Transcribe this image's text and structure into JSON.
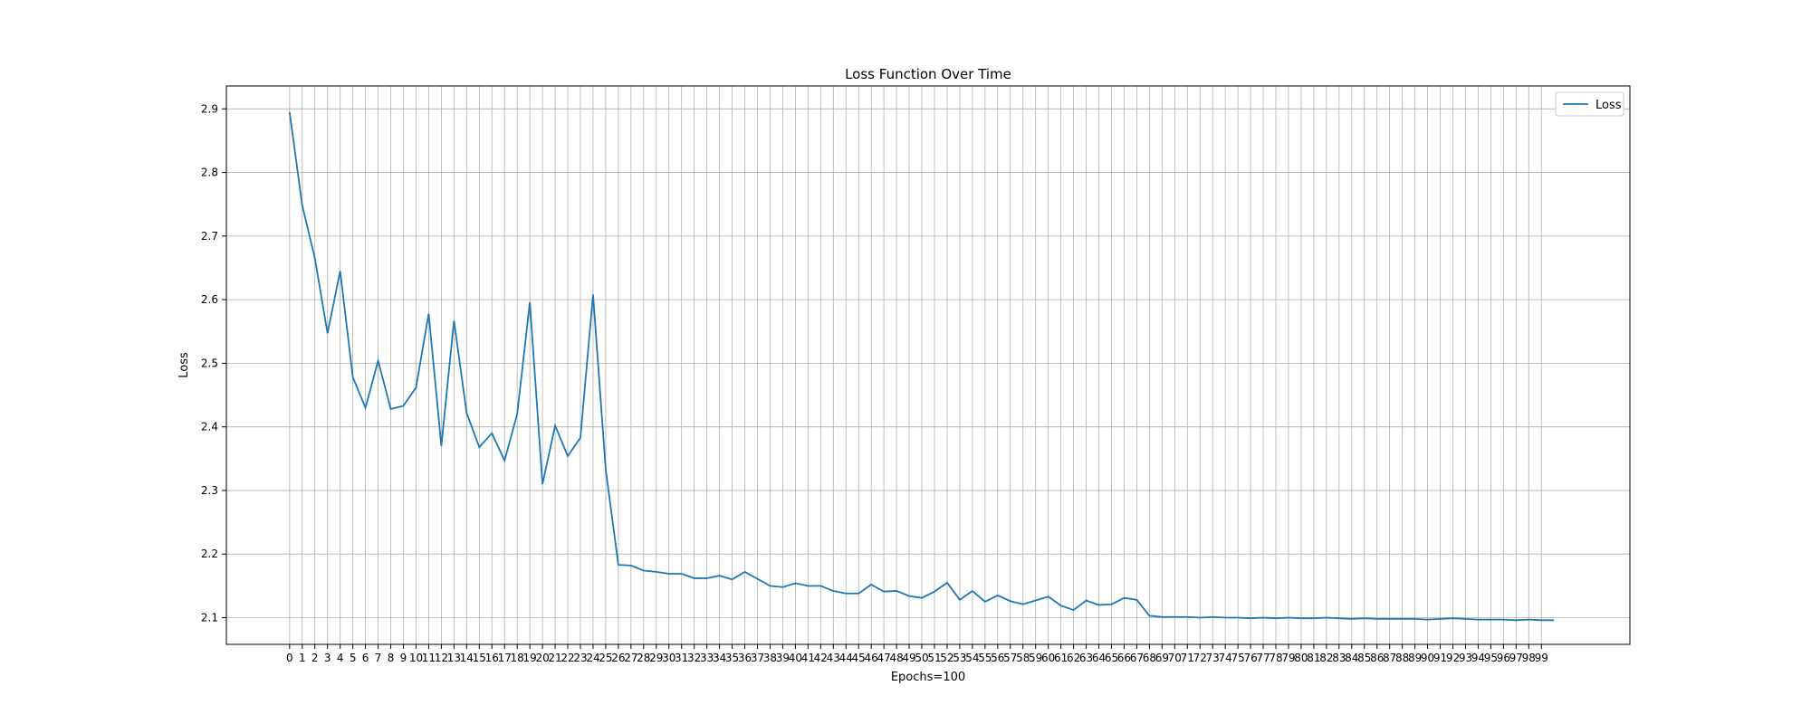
{
  "chart_data": {
    "type": "line",
    "title": "Loss Function Over Time",
    "xlabel": "Epochs=100",
    "ylabel": "Loss",
    "grid": true,
    "legend_position": "top-right",
    "xlim": [
      -5,
      106
    ],
    "ylim": [
      2.058,
      2.936
    ],
    "x_ticks": [
      0,
      1,
      2,
      3,
      4,
      5,
      6,
      7,
      8,
      9,
      10,
      11,
      12,
      13,
      14,
      15,
      16,
      17,
      18,
      19,
      20,
      21,
      22,
      23,
      24,
      25,
      26,
      27,
      28,
      29,
      30,
      31,
      32,
      33,
      34,
      35,
      36,
      37,
      38,
      39,
      40,
      41,
      42,
      43,
      44,
      45,
      46,
      47,
      48,
      49,
      50,
      51,
      52,
      53,
      54,
      55,
      56,
      57,
      58,
      59,
      60,
      61,
      62,
      63,
      64,
      65,
      66,
      67,
      68,
      69,
      70,
      71,
      72,
      73,
      74,
      75,
      76,
      77,
      78,
      79,
      80,
      81,
      82,
      83,
      84,
      85,
      86,
      87,
      88,
      89,
      90,
      91,
      92,
      93,
      94,
      95,
      96,
      97,
      98,
      99
    ],
    "y_ticks": [
      "2.1",
      "2.2",
      "2.3",
      "2.4",
      "2.5",
      "2.6",
      "2.7",
      "2.8",
      "2.9"
    ],
    "series": [
      {
        "name": "Loss",
        "color": "#1f77b4",
        "values": [
          2.895,
          2.748,
          2.665,
          2.547,
          2.645,
          2.478,
          2.43,
          2.504,
          2.428,
          2.433,
          2.462,
          2.578,
          2.37,
          2.567,
          2.422,
          2.368,
          2.39,
          2.347,
          2.42,
          2.596,
          2.31,
          2.402,
          2.354,
          2.383,
          2.608,
          2.333,
          2.183,
          2.182,
          2.174,
          2.172,
          2.169,
          2.169,
          2.162,
          2.162,
          2.166,
          2.16,
          2.172,
          2.161,
          2.15,
          2.148,
          2.154,
          2.15,
          2.15,
          2.142,
          2.138,
          2.138,
          2.152,
          2.141,
          2.142,
          2.134,
          2.131,
          2.141,
          2.155,
          2.128,
          2.142,
          2.125,
          2.135,
          2.126,
          2.121,
          2.127,
          2.133,
          2.119,
          2.112,
          2.127,
          2.12,
          2.121,
          2.131,
          2.128,
          2.103,
          2.101,
          2.101,
          2.101,
          2.1,
          2.101,
          2.1,
          2.1,
          2.099,
          2.1,
          2.099,
          2.1,
          2.099,
          2.099,
          2.1,
          2.099,
          2.098,
          2.099,
          2.098,
          2.098,
          2.098,
          2.098,
          2.097,
          2.098,
          2.099,
          2.098,
          2.097,
          2.097,
          2.097,
          2.096,
          2.097,
          2.096,
          2.096
        ]
      }
    ]
  }
}
